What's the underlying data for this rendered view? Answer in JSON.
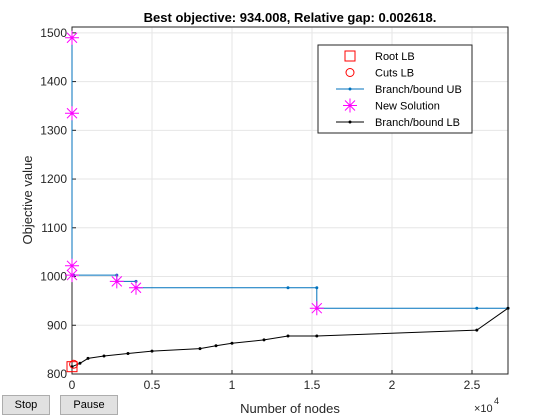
{
  "chart_data": {
    "type": "line",
    "title": "Best objective: 934.008, Relative gap: 0.002618.",
    "xlabel": "Number of nodes",
    "ylabel": "Objective value",
    "x_multiplier": "×10",
    "x_multiplier_exponent": "4",
    "xlim": [
      0,
      27250
    ],
    "ylim": [
      800,
      1512
    ],
    "xticks": [
      {
        "value": 0,
        "label": "0"
      },
      {
        "value": 5000,
        "label": "0.5"
      },
      {
        "value": 10000,
        "label": "1"
      },
      {
        "value": 15000,
        "label": "1.5"
      },
      {
        "value": 20000,
        "label": "2"
      },
      {
        "value": 25000,
        "label": "2.5"
      }
    ],
    "yticks": [
      800,
      900,
      1000,
      1100,
      1200,
      1300,
      1400,
      1500
    ],
    "grid": true,
    "legend_position": "northeast",
    "series": [
      {
        "name": "Root LB",
        "color": "#ff0000",
        "marker": "square",
        "line": false,
        "x": [
          0
        ],
        "values": [
          815
        ]
      },
      {
        "name": "Cuts LB",
        "color": "#ff0000",
        "marker": "circle",
        "line": false,
        "x": [
          100
        ],
        "values": [
          820
        ]
      },
      {
        "name": "Branch/bound UB",
        "color": "#0072bd",
        "marker": "dot",
        "line": true,
        "x": [
          0,
          0,
          0,
          0,
          100,
          2800,
          2800,
          4000,
          4000,
          13500,
          15300,
          15300,
          25300,
          27250
        ],
        "values": [
          1490,
          1335,
          1022,
          1003,
          1003,
          1003,
          990,
          990,
          977,
          977,
          977,
          935,
          935,
          935
        ]
      },
      {
        "name": "New Solution",
        "color": "#ff00ff",
        "marker": "asterisk",
        "line": false,
        "x": [
          0,
          0,
          0,
          0,
          2800,
          4000,
          15300
        ],
        "values": [
          1490,
          1335,
          1022,
          1003,
          990,
          977,
          935
        ]
      },
      {
        "name": "Branch/bound LB",
        "color": "#000000",
        "marker": "dot",
        "line": true,
        "x": [
          0,
          500,
          1000,
          2000,
          3500,
          5000,
          8000,
          9000,
          10000,
          12000,
          13500,
          15300,
          25300,
          27250
        ],
        "values": [
          815,
          822,
          832,
          837,
          842,
          847,
          852,
          858,
          863,
          870,
          878,
          878,
          890,
          935
        ]
      }
    ],
    "buttons": [
      "Stop",
      "Pause"
    ]
  }
}
